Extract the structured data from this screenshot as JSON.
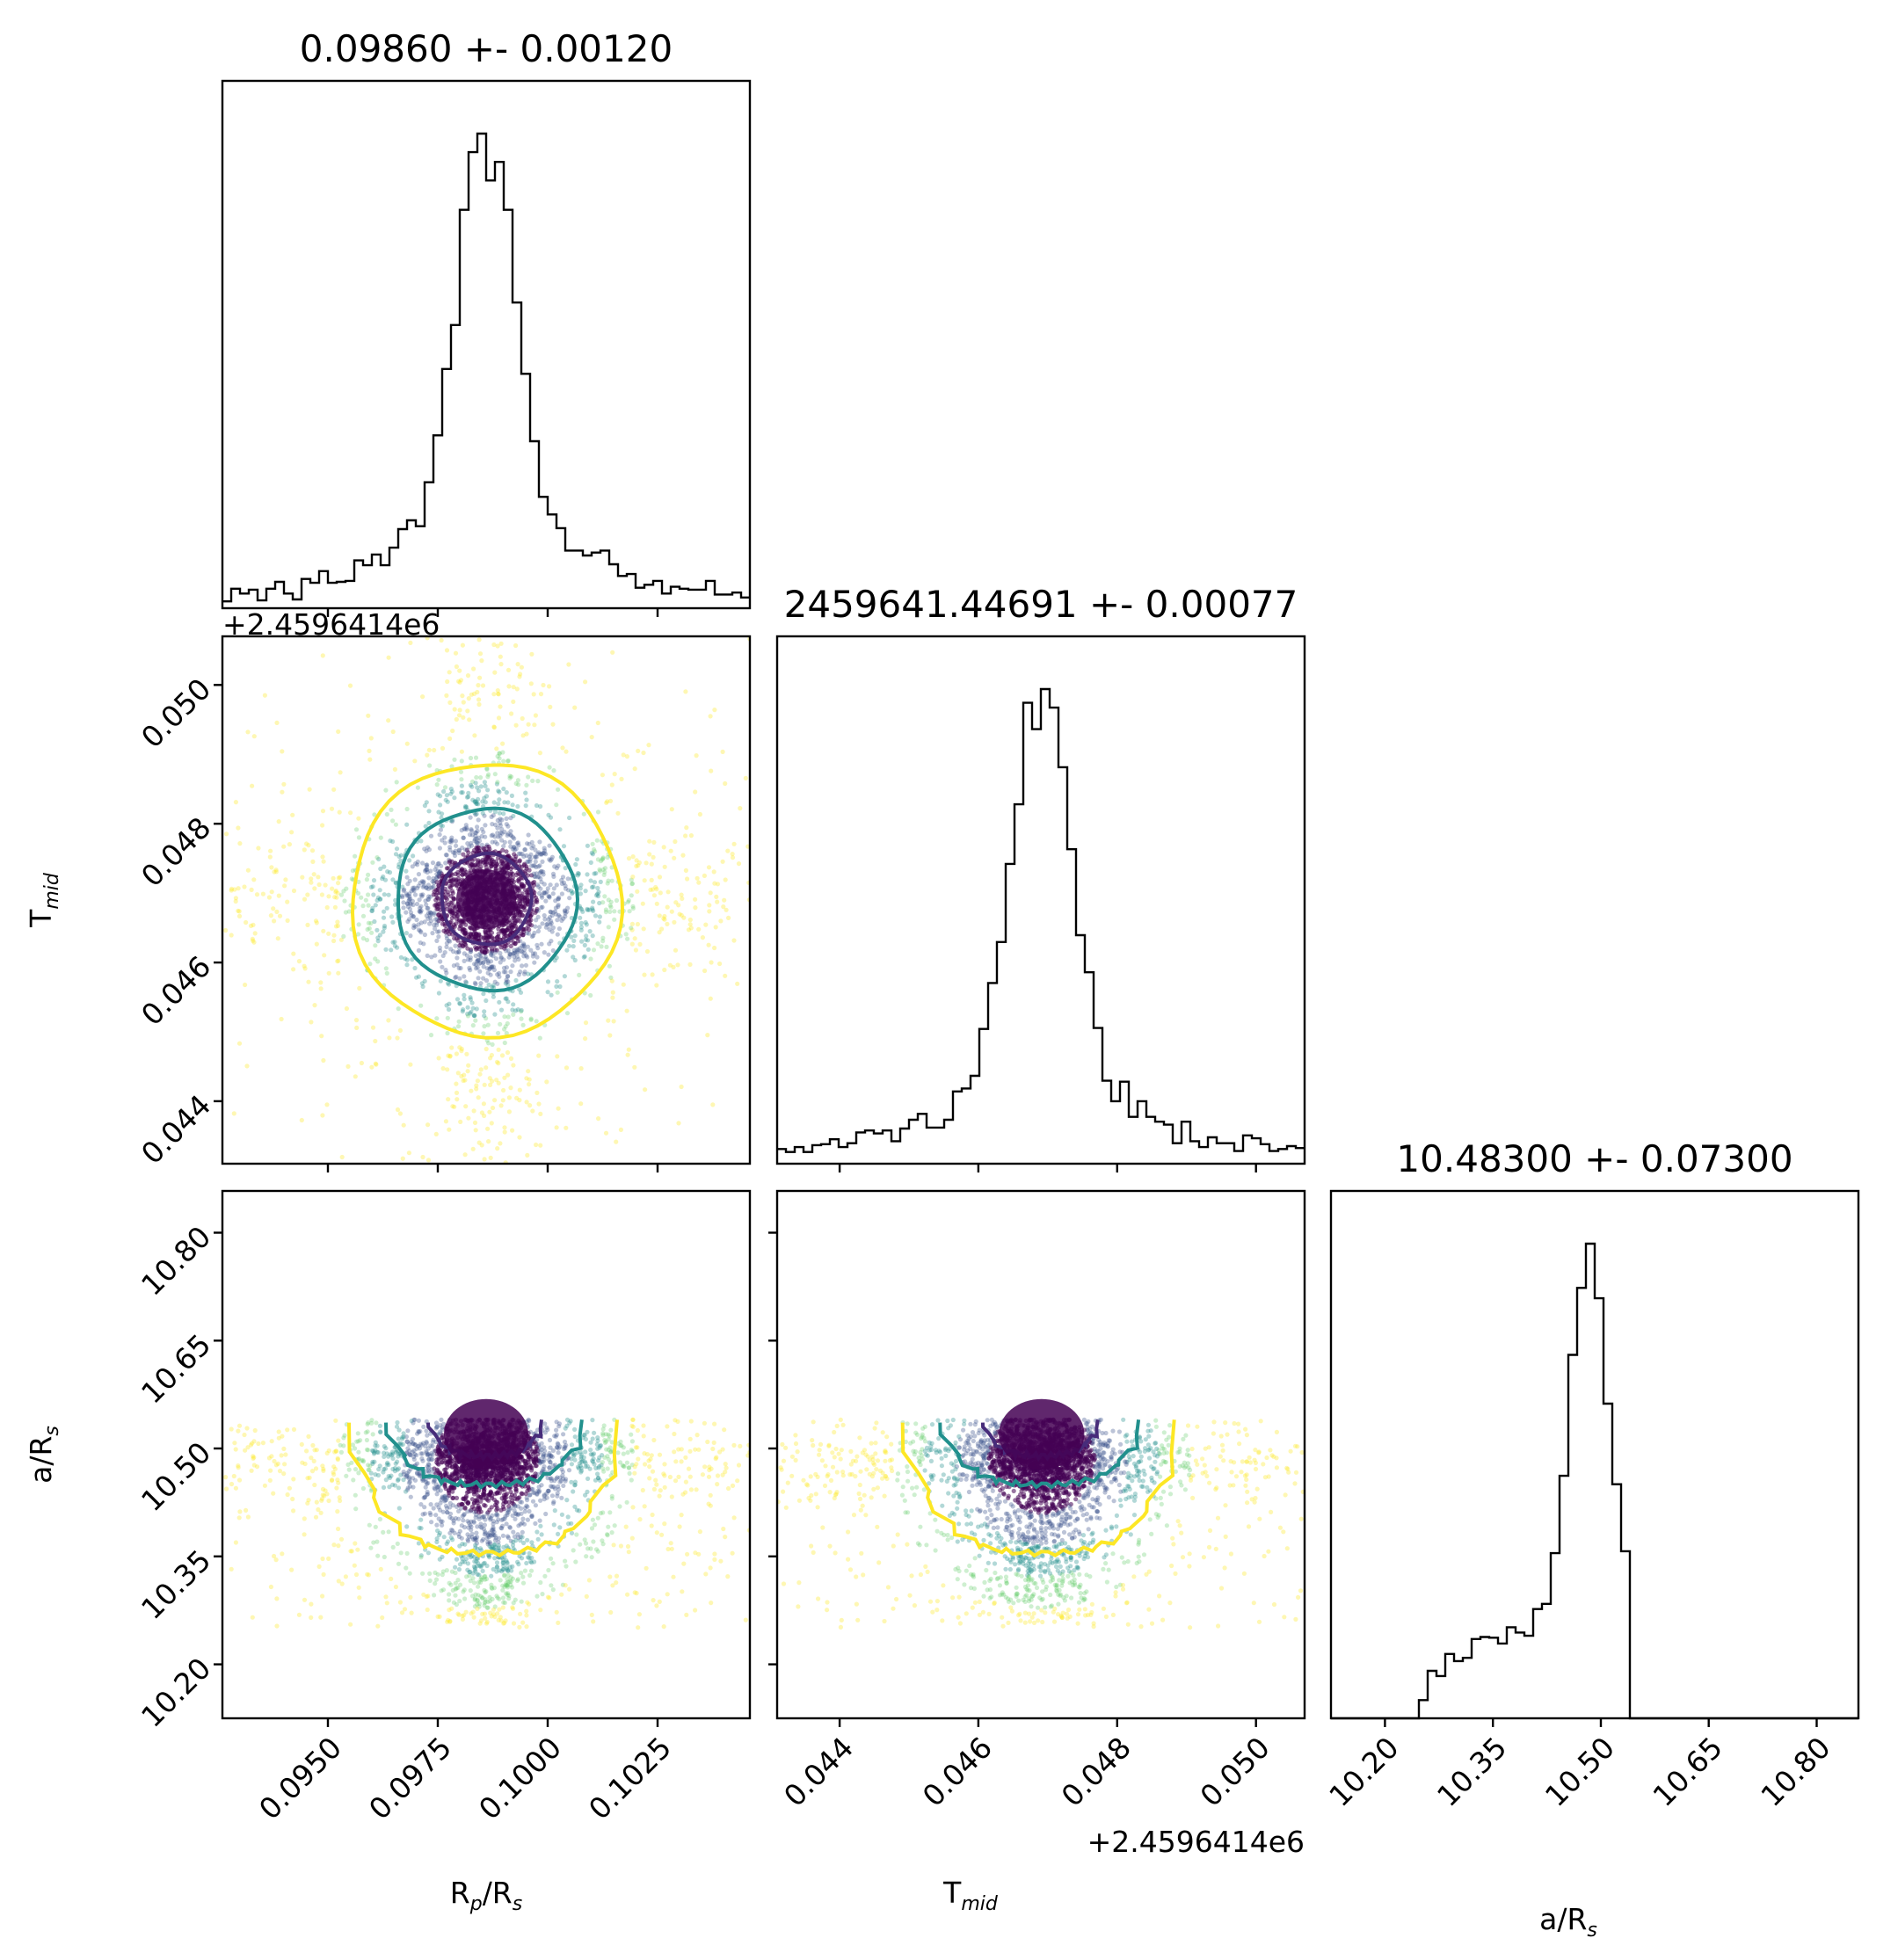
{
  "chart_data": {
    "type": "corner",
    "colors": {
      "contour_inner": "#472c7a",
      "contour_mid": "#21908d",
      "contour_outer": "#fde725",
      "dense_core": "#440154",
      "hist_line": "#000000"
    },
    "parameters": [
      {
        "key": "rp",
        "label_main": "R",
        "label_sub1": "p",
        "label_mid": "/R",
        "label_sub2": "s",
        "title": "0.09860 +- 0.00120",
        "range": [
          0.0926,
          0.1046
        ],
        "ticks": [
          0.095,
          0.0975,
          0.1,
          0.1025
        ],
        "tick_labels": [
          "0.0950",
          "0.0975",
          "0.1000",
          "0.1025"
        ],
        "median": 0.0986,
        "sigma": 0.0012
      },
      {
        "key": "tmid",
        "label_main": "T",
        "label_sub1": "mid",
        "label_mid": "",
        "label_sub2": "",
        "title": "2459641.44691 +- 0.00077",
        "offset_text": "+2.4596414e6",
        "range": [
          0.0431,
          0.0507
        ],
        "ticks": [
          0.044,
          0.046,
          0.048,
          0.05
        ],
        "tick_labels": [
          "0.044",
          "0.046",
          "0.048",
          "0.050"
        ],
        "median": 0.04691,
        "sigma": 0.00077
      },
      {
        "key": "ars",
        "label_main": "a/R",
        "label_sub1": "s",
        "label_mid": "",
        "label_sub2": "",
        "title": "10.48300 +- 0.07300",
        "range": [
          10.125,
          10.858
        ],
        "ticks": [
          10.2,
          10.35,
          10.5,
          10.65,
          10.8
        ],
        "tick_labels": [
          "10.20",
          "10.35",
          "10.50",
          "10.65",
          "10.80"
        ],
        "median": 10.483,
        "sigma": 0.073,
        "bounds": [
          10.25,
          10.54
        ]
      }
    ]
  }
}
